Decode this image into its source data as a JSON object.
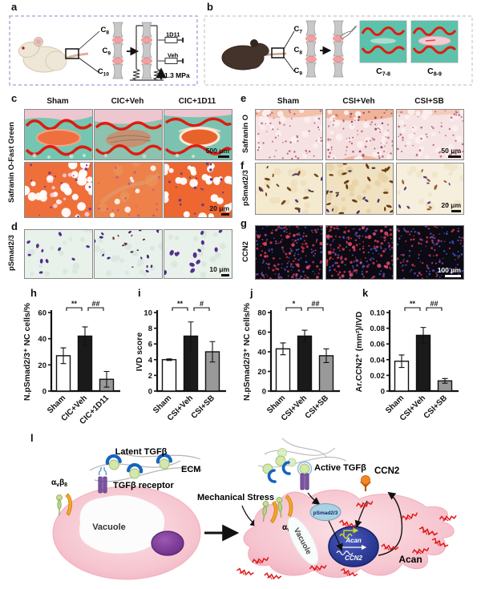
{
  "colors": {
    "panel_a_border": "#98a4d4",
    "panel_b_border": "#c8c8c8",
    "fast_green_teal": "#74c6b2",
    "stain_red": "#dd1c10",
    "np_orange": "#ee7040",
    "safranin_pink": "#f6e2e2",
    "ihc_brown": "#7a4418",
    "fluor_bg": "#0c0a12",
    "fluor_red": "#c23352",
    "fluor_blue": "#4452c8",
    "bar_white": "#ffffff",
    "bar_black": "#1a1a1a",
    "bar_gray": "#999999",
    "cell_pink": "#f4bcc8",
    "nucleus_purple": "#7b3f98",
    "nucleus_blue": "#1e2c80",
    "tgfb_blue": "#1565c0",
    "integrin_orange": "#f5a623",
    "integrin_green": "#b8d488",
    "acan_red": "#e01818"
  },
  "panel_a": {
    "letter": "a",
    "vertebrae": [
      {
        "base": "C",
        "sub": "8"
      },
      {
        "base": "C",
        "sub": "9"
      },
      {
        "base": "C",
        "sub": "10"
      }
    ],
    "injection_top": "1D11",
    "injection_bottom": "Veh",
    "pressure": "1.3 MPa"
  },
  "panel_b": {
    "letter": "b",
    "vertebrae": [
      {
        "base": "C",
        "sub": "7"
      },
      {
        "base": "C",
        "sub": "8"
      },
      {
        "base": "C",
        "sub": "9"
      }
    ],
    "sections": [
      {
        "base": "C",
        "sub": "7-8"
      },
      {
        "base": "C",
        "sub": "8-9"
      }
    ]
  },
  "panel_c": {
    "letter": "c",
    "columns": [
      "Sham",
      "CIC+Veh",
      "CIC+1D11"
    ],
    "row_label": "Safranin O-Fast Green",
    "scalebar_row1": "500 μm",
    "scalebar_row2": "20 μm"
  },
  "panel_d": {
    "letter": "d",
    "row_label": "pSmad2/3",
    "scalebar": "10 μm"
  },
  "panel_e": {
    "letter": "e",
    "columns": [
      "Sham",
      "CSI+Veh",
      "CSI+SB"
    ],
    "row_label": "Safranin O",
    "scalebar": "50 μm"
  },
  "panel_f": {
    "letter": "f",
    "row_label": "pSmad2/3",
    "scalebar": "20 μm"
  },
  "panel_g": {
    "letter": "g",
    "row_label": "CCN2",
    "scalebar": "100 μm"
  },
  "panel_l": {
    "letter": "l",
    "latent_tgfb": "Latent TGFβ",
    "ecm": "ECM",
    "tgfb_receptor": "TGFβ receptor",
    "integrin": {
      "alpha": "α",
      "alpha_sub": "v",
      "beta": "β",
      "beta_sub": "8"
    },
    "vacuole": "Vacuole",
    "vacuole_right": "Vacuole",
    "mechanical_stress": "Mechanical Stress",
    "active_tgfb": "Active TGFβ",
    "psmad": "pSmad2/3",
    "gene_acan": "Acan",
    "gene_ccn2": "CCN2",
    "secreted_ccn2": "CCN2",
    "secreted_acan": "Acan"
  },
  "chart_data": [
    {
      "panel": "h",
      "type": "bar",
      "ylabel": "N.pSmad2/3⁺ NC cells/%",
      "ylim": [
        0,
        60
      ],
      "yticks": [
        0,
        20,
        40,
        60
      ],
      "ytick_labels": [
        "0",
        "20",
        "40",
        "60"
      ],
      "categories": [
        "Sham",
        "CIC+Veh",
        "CIC+1D11"
      ],
      "values": [
        27,
        42,
        9
      ],
      "errors": [
        6,
        7,
        6
      ],
      "bar_colors": [
        "#ffffff",
        "#1a1a1a",
        "#999999"
      ],
      "significance": [
        {
          "from": 0,
          "to": 1,
          "label": "**"
        },
        {
          "from": 1,
          "to": 2,
          "label": "##"
        }
      ],
      "mleft": 38,
      "legend": "none",
      "grid": false
    },
    {
      "panel": "i",
      "type": "bar",
      "ylabel": "IVD score",
      "ylim": [
        0,
        10
      ],
      "yticks": [
        0,
        2,
        4,
        6,
        8,
        10
      ],
      "ytick_labels": [
        "0",
        "2",
        "4",
        "6",
        "8",
        "10"
      ],
      "categories": [
        "Sham",
        "CSI+Veh",
        "CSI+SB"
      ],
      "values": [
        4,
        7,
        5
      ],
      "errors": [
        0.1,
        1.8,
        1.3
      ],
      "bar_colors": [
        "#ffffff",
        "#1a1a1a",
        "#999999"
      ],
      "significance": [
        {
          "from": 0,
          "to": 1,
          "label": "**"
        },
        {
          "from": 1,
          "to": 2,
          "label": "#"
        }
      ],
      "mleft": 30,
      "legend": "none",
      "grid": false
    },
    {
      "panel": "j",
      "type": "bar",
      "ylabel": "N.pSmad2/3⁺ NC cells/%",
      "ylim": [
        0,
        80
      ],
      "yticks": [
        0,
        20,
        40,
        60,
        80
      ],
      "ytick_labels": [
        "0",
        "20",
        "40",
        "60",
        "80"
      ],
      "categories": [
        "Sham",
        "CSI+Veh",
        "CSI+SB"
      ],
      "values": [
        43,
        56,
        36
      ],
      "errors": [
        6,
        6,
        7
      ],
      "bar_colors": [
        "#ffffff",
        "#1a1a1a",
        "#999999"
      ],
      "significance": [
        {
          "from": 0,
          "to": 1,
          "label": "*"
        },
        {
          "from": 1,
          "to": 2,
          "label": "##"
        }
      ],
      "mleft": 38,
      "legend": "none",
      "grid": false
    },
    {
      "panel": "k",
      "type": "bar",
      "ylabel": "Ar.CCN2⁺ (mm²)/IVD",
      "ylim": [
        0,
        0.1
      ],
      "yticks": [
        0,
        0.02,
        0.04,
        0.06,
        0.08,
        0.1
      ],
      "ytick_labels": [
        "0",
        "0.02",
        "0.04",
        "0.06",
        "0.08",
        "0.10"
      ],
      "categories": [
        "Sham",
        "CSI+Veh",
        "CSI+SB"
      ],
      "values": [
        0.038,
        0.071,
        0.013
      ],
      "errors": [
        0.008,
        0.01,
        0.003
      ],
      "bar_colors": [
        "#ffffff",
        "#1a1a1a",
        "#999999"
      ],
      "significance": [
        {
          "from": 0,
          "to": 1,
          "label": "**"
        },
        {
          "from": 1,
          "to": 2,
          "label": "##"
        }
      ],
      "mleft": 46,
      "legend": "none",
      "grid": false
    }
  ]
}
